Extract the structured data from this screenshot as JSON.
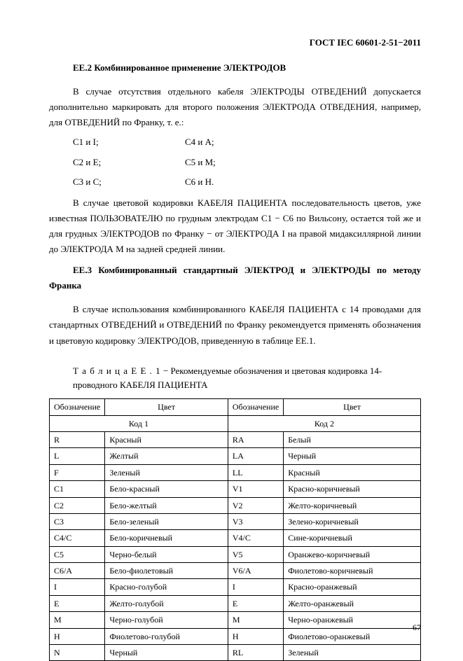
{
  "doc_id": "ГОСТ IEC 60601-2-51−2011",
  "section_ee2_heading": "ЕЕ.2 Комбинированное применение ЭЛЕКТРОДОВ",
  "section_ee2_p1": "В случае отсутствия отдельного кабеля ЭЛЕКТРОДЫ ОТВЕДЕНИЙ допускается дополнительно маркировать для второго положения ЭЛЕКТРОДА ОТВЕДЕНИЯ, например, для ОТВЕДЕНИЙ по Франку, т. е.:",
  "pairs": [
    {
      "left": "C1 и I;",
      "right": "C4 и A;"
    },
    {
      "left": "C2 и E;",
      "right": "C5 и M;"
    },
    {
      "left": "C3 и C;",
      "right": "C6 и H."
    }
  ],
  "section_ee2_p2": "В случае цветовой кодировки КАБЕЛЯ ПАЦИЕНТА последовательность цветов, уже известная ПОЛЬЗОВАТЕЛЮ по грудным электродам С1 − С6 по Вильсону, остается той же и для грудных ЭЛЕКТРОДОВ по Франку − от ЭЛЕКТРОДА I на правой мидаксиллярной линии до ЭЛЕКТРОДА М на задней средней линии.",
  "section_ee3_heading": "ЕЕ.3 Комбинированный стандартный ЭЛЕКТРОД и ЭЛЕКТРОДЫ по методу Франка",
  "section_ee3_p1": "В случае использования комбинированного КАБЕЛЯ ПАЦИЕНТА с 14 проводами для стандартных ОТВЕДЕНИЙ и ОТВЕДЕНИЙ по Франку рекомендуется применять обозначения и цветовую кодировку ЭЛЕКТРОДОВ, приведенную в таблице ЕЕ.1.",
  "table_caption_prefix": "Т а б л и ц а  Е Е . 1",
  "table_caption_rest": "  −  Рекомендуемые обозначения и цветовая кодировка 14-проводного КАБЕЛЯ ПАЦИЕНТА",
  "table": {
    "head_designation": "Обозначение",
    "head_color": "Цвет",
    "code1": "Код 1",
    "code2": "Код 2",
    "rows": [
      {
        "d1": "R",
        "c1": "Красный",
        "d2": "RA",
        "c2": "Белый"
      },
      {
        "d1": "L",
        "c1": "Желтый",
        "d2": "LA",
        "c2": "Черный"
      },
      {
        "d1": "F",
        "c1": "Зеленый",
        "d2": "LL",
        "c2": "Красный"
      },
      {
        "d1": "C1",
        "c1": "Бело-красный",
        "d2": "V1",
        "c2": "Красно-коричневый"
      },
      {
        "d1": "C2",
        "c1": "Бело-желтый",
        "d2": "V2",
        "c2": "Желто-коричневый"
      },
      {
        "d1": "C3",
        "c1": "Бело-зеленый",
        "d2": "V3",
        "c2": "Зелено-коричневый"
      },
      {
        "d1": "C4/C",
        "c1": "Бело-коричневый",
        "d2": "V4/C",
        "c2": "Сине-коричневый"
      },
      {
        "d1": "C5",
        "c1": "Черно-белый",
        "d2": "V5",
        "c2": "Оранжево-коричневый"
      },
      {
        "d1": "C6/A",
        "c1": "Бело-фиолетовый",
        "d2": "V6/A",
        "c2": "Фиолетово-коричневый"
      },
      {
        "d1": "I",
        "c1": "Красно-голубой",
        "d2": "I",
        "c2": "Красно-оранжевый"
      },
      {
        "d1": "E",
        "c1": "Желто-голубой",
        "d2": "E",
        "c2": "Желто-оранжевый"
      },
      {
        "d1": "M",
        "c1": "Черно-голубой",
        "d2": "M",
        "c2": "Черно-оранжевый"
      },
      {
        "d1": "H",
        "c1": "Фиолетово-голубой",
        "d2": "H",
        "c2": "Фиолетово-оранжевый"
      },
      {
        "d1": "N",
        "c1": "Черный",
        "d2": "RL",
        "c2": "Зеленый"
      }
    ]
  },
  "page_number": "67"
}
